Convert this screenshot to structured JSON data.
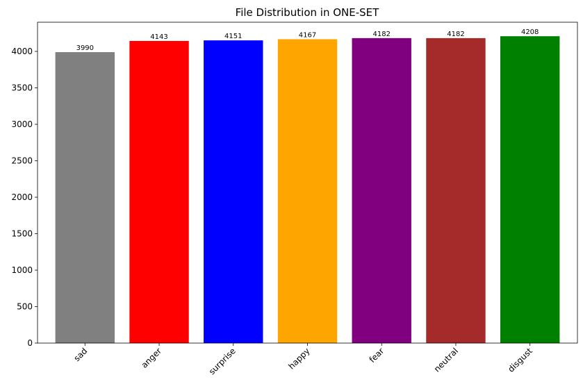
{
  "chart_data": {
    "type": "bar",
    "title": "File Distribution in ONE-SET",
    "xlabel": "",
    "ylabel": "",
    "categories": [
      "sad",
      "anger",
      "surprise",
      "happy",
      "fear",
      "neutral",
      "disgust"
    ],
    "values": [
      3990,
      4143,
      4151,
      4167,
      4182,
      4182,
      4208
    ],
    "colors": [
      "#808080",
      "#ff0000",
      "#0000ff",
      "#ffa500",
      "#800080",
      "#a52a2a",
      "#008000"
    ],
    "ylim": [
      0,
      4400
    ],
    "yticks": [
      0,
      500,
      1000,
      1500,
      2000,
      2500,
      3000,
      3500,
      4000
    ],
    "grid": false,
    "legend": "none"
  }
}
